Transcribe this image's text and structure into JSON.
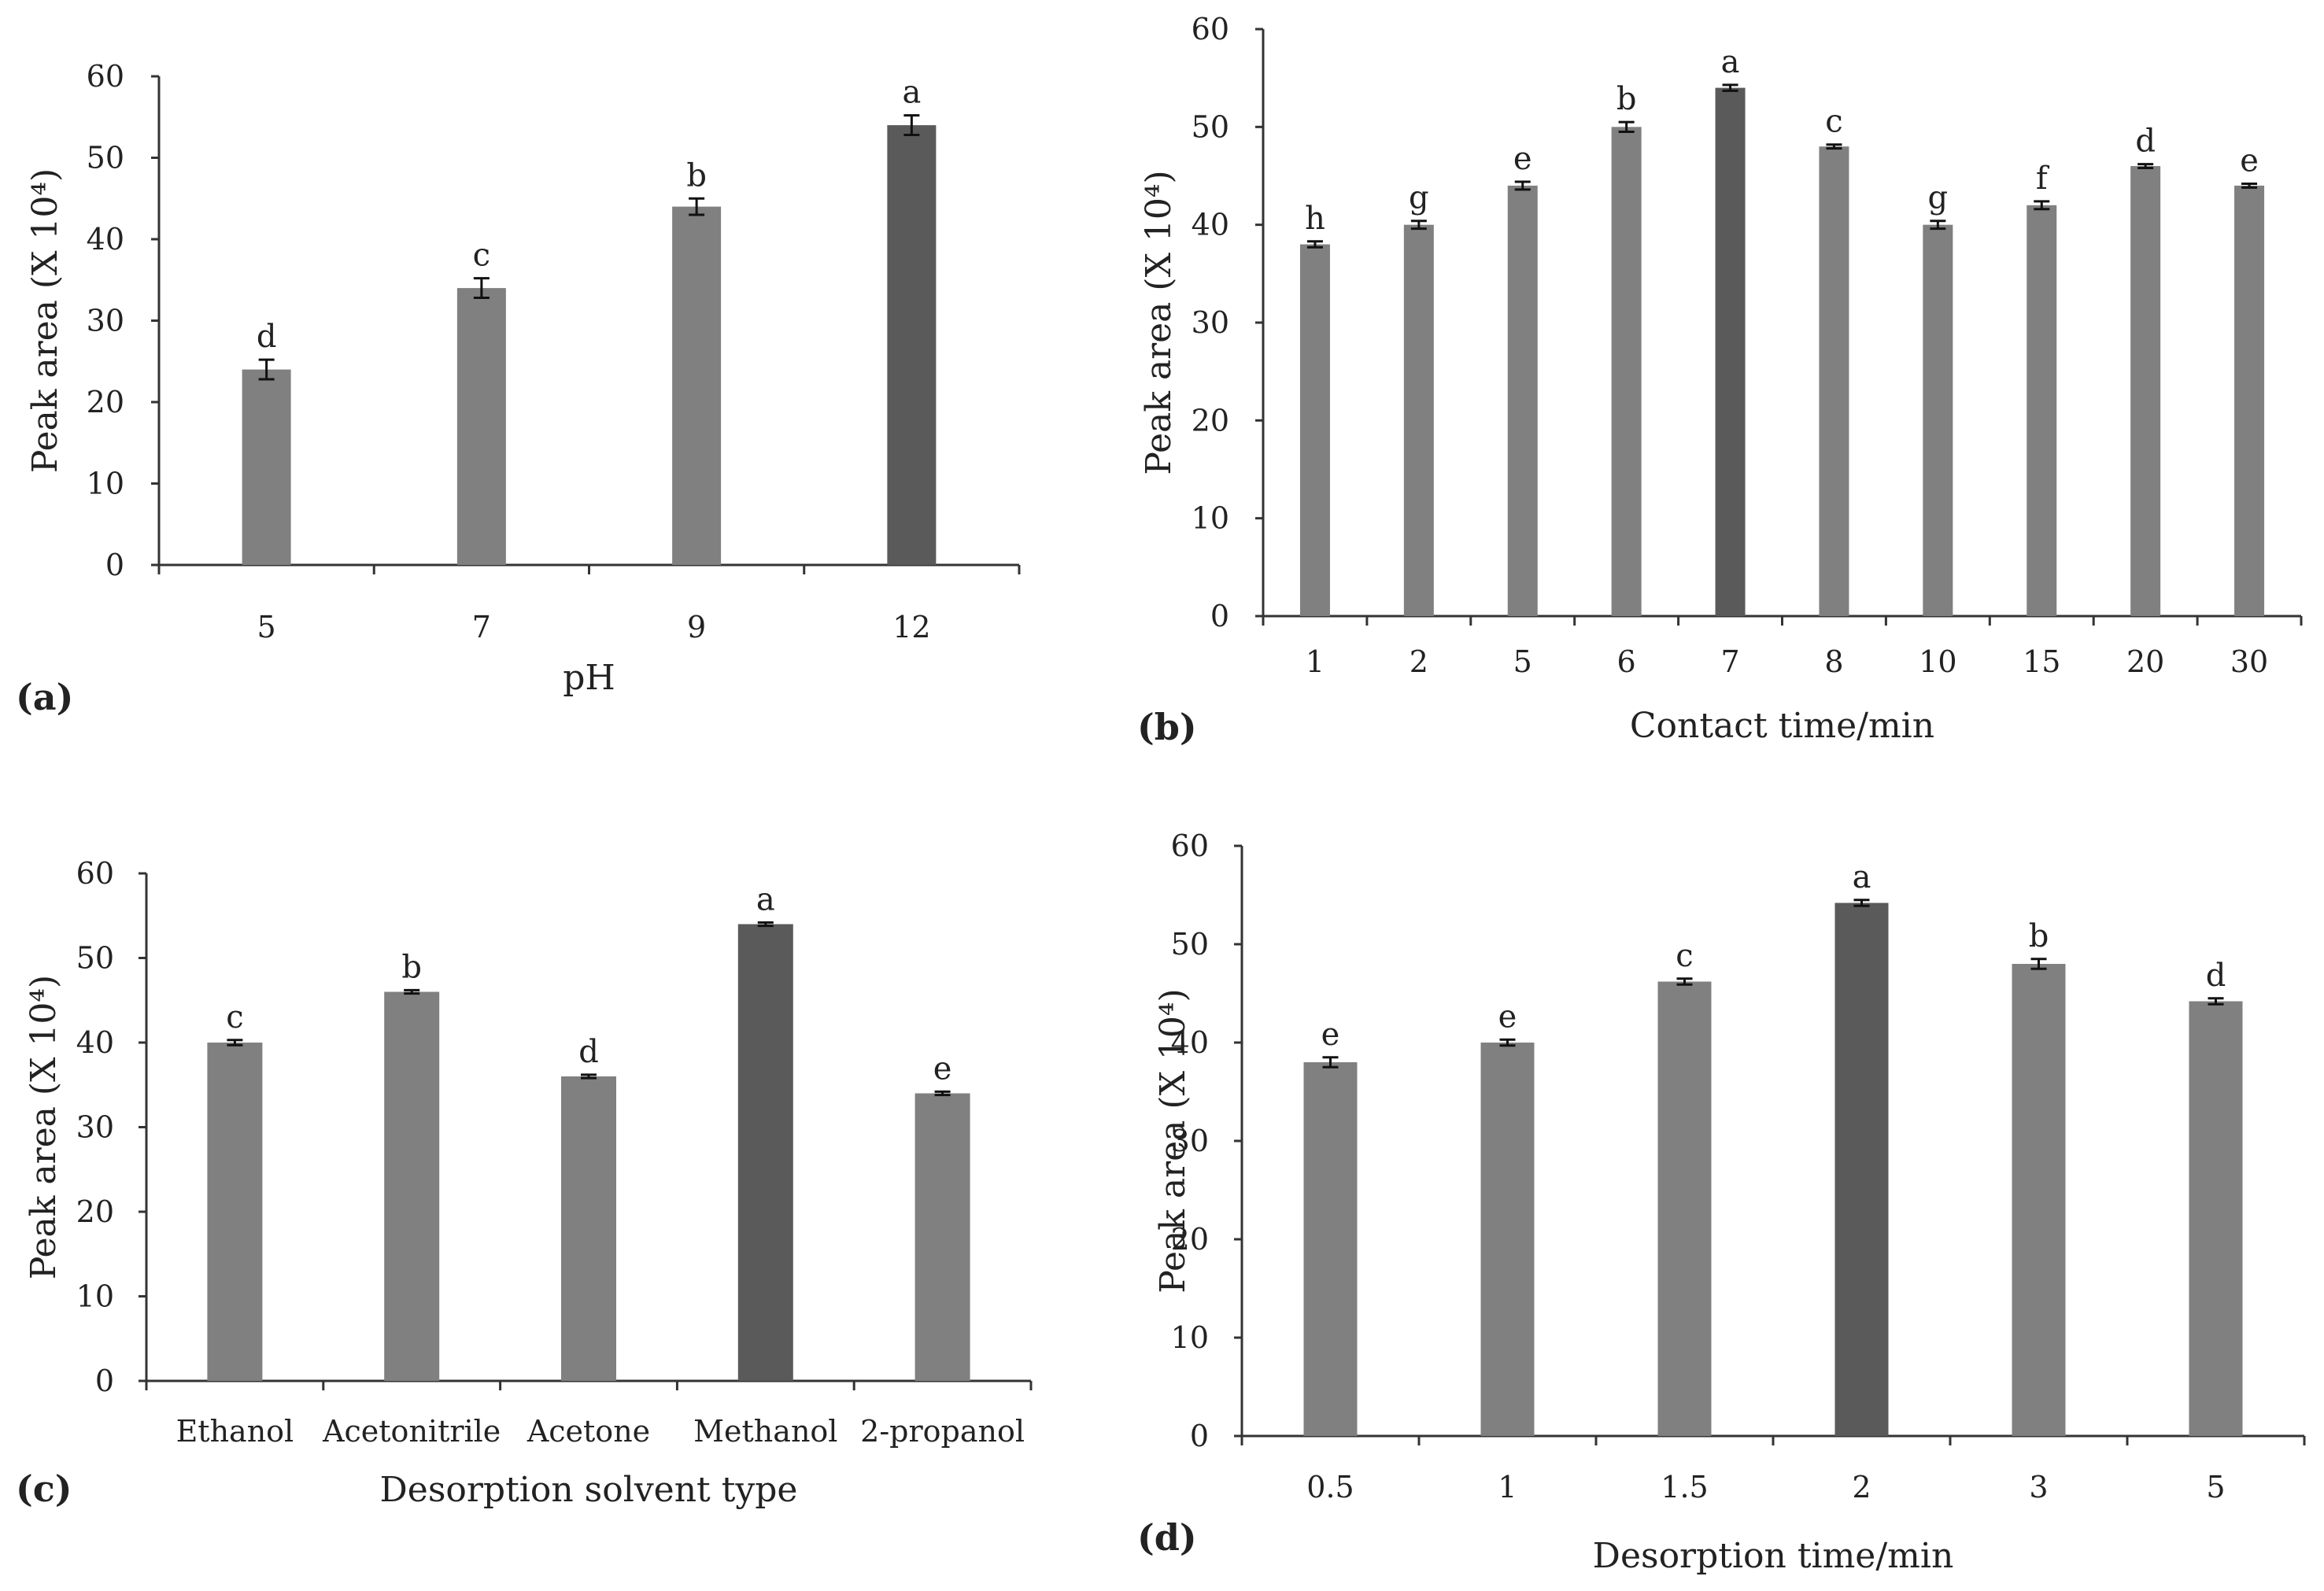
{
  "colors": {
    "bar": "#808080",
    "bar_highlight": "#5a5a5a",
    "axis": "#333333",
    "text": "#222222"
  },
  "chart_data": [
    {
      "type": "bar",
      "panel_label": "(a)",
      "title": "",
      "xlabel": "pH",
      "ylabel": "Peak area (X 10⁴)",
      "ylim": [
        0,
        60
      ],
      "yticks": [
        0,
        10,
        20,
        30,
        40,
        50,
        60
      ],
      "categories": [
        "5",
        "7",
        "9",
        "12"
      ],
      "values": [
        24,
        34,
        44,
        54
      ],
      "errors": [
        1.2,
        1.2,
        1.0,
        1.2
      ],
      "letters": [
        "d",
        "c",
        "b",
        "a"
      ],
      "highlight_index": 3
    },
    {
      "type": "bar",
      "panel_label": "(b)",
      "title": "",
      "xlabel": "Contact time/min",
      "ylabel": "Peak area (X 10⁴)",
      "ylim": [
        0,
        60
      ],
      "yticks": [
        0,
        10,
        20,
        30,
        40,
        50,
        60
      ],
      "categories": [
        "1",
        "2",
        "5",
        "6",
        "7",
        "8",
        "10",
        "15",
        "20",
        "30"
      ],
      "values": [
        38,
        40,
        44,
        50,
        54,
        48,
        40,
        42,
        46,
        44
      ],
      "errors": [
        0.3,
        0.4,
        0.4,
        0.5,
        0.3,
        0.2,
        0.4,
        0.4,
        0.2,
        0.2
      ],
      "letters": [
        "h",
        "g",
        "e",
        "b",
        "a",
        "c",
        "g",
        "f",
        "d",
        "e"
      ],
      "highlight_index": 4
    },
    {
      "type": "bar",
      "panel_label": "(c)",
      "title": "",
      "xlabel": "Desorption solvent type",
      "ylabel": "Peak area (X 10⁴)",
      "ylim": [
        0,
        60
      ],
      "yticks": [
        0,
        10,
        20,
        30,
        40,
        50,
        60
      ],
      "categories": [
        "Ethanol",
        "Acetonitrile",
        "Acetone",
        "Methanol",
        "2-propanol"
      ],
      "values": [
        40,
        46,
        36,
        54,
        34
      ],
      "errors": [
        0.3,
        0.2,
        0.2,
        0.2,
        0.2
      ],
      "letters": [
        "c",
        "b",
        "d",
        "a",
        "e"
      ],
      "highlight_index": 3
    },
    {
      "type": "bar",
      "panel_label": "(d)",
      "title": "",
      "xlabel": "Desorption time/min",
      "ylabel": "Peak area (X 10⁴)",
      "ylim": [
        0,
        60
      ],
      "yticks": [
        0,
        10,
        20,
        30,
        40,
        50,
        60
      ],
      "categories": [
        "0.5",
        "1",
        "1.5",
        "2",
        "3",
        "5"
      ],
      "values": [
        38,
        40,
        46.2,
        54.2,
        48,
        44.2
      ],
      "errors": [
        0.5,
        0.3,
        0.3,
        0.3,
        0.5,
        0.3
      ],
      "letters": [
        "e",
        "e",
        "c",
        "a",
        "b",
        "d"
      ],
      "highlight_index": 3
    }
  ]
}
